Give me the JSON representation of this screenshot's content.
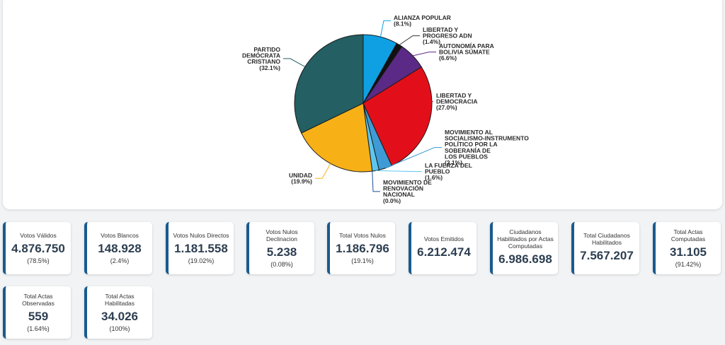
{
  "chart_data": {
    "type": "pie",
    "title": "",
    "slices": [
      {
        "lines": [
          "ALIANZA POPULAR",
          "(8.1%)"
        ],
        "value": 8.1,
        "color": "#0fa0e3"
      },
      {
        "lines": [
          "LIBERTAD Y",
          "PROGRESO ADN",
          "(1.4%)"
        ],
        "value": 1.4,
        "color": "#111111"
      },
      {
        "lines": [
          "AUTONOMÍA PARA",
          "BOLIVIA SÚMATE",
          "(6.6%)"
        ],
        "value": 6.6,
        "color": "#5b2a86"
      },
      {
        "lines": [
          "LIBERTAD Y",
          "DEMOCRACIA",
          "(27.0%)"
        ],
        "value": 27.0,
        "color": "#e20f1a"
      },
      {
        "lines": [
          "MOVIMIENTO AL",
          "SOCIALISMO-INSTRUMENTO",
          "POLÍTICO POR LA",
          "SOBERANÍA DE",
          "LOS PUEBLOS",
          "(3.1%)"
        ],
        "value": 3.1,
        "color": "#3e9bd6"
      },
      {
        "lines": [
          "LA FUERZA DEL",
          "PUEBLO",
          "(1.6%)"
        ],
        "value": 1.6,
        "color": "#5ec6ee"
      },
      {
        "lines": [
          "MOVIMIENTO DE",
          "RENOVACIÓN",
          "NACIONAL",
          "(0.0%)"
        ],
        "value": 0.0,
        "color": "#1f4e9a"
      },
      {
        "lines": [
          "UNIDAD",
          "(19.9%)"
        ],
        "value": 19.9,
        "color": "#f7b117"
      },
      {
        "lines": [
          "PARTIDO",
          "DEMÓCRATA",
          "CRISTIANO",
          "(32.1%)"
        ],
        "value": 32.1,
        "color": "#235f63"
      }
    ]
  },
  "stats": [
    {
      "label": "Votos Válidos",
      "value": "4.876.750",
      "pct": "(78.5%)"
    },
    {
      "label": "Votos Blancos",
      "value": "148.928",
      "pct": "(2.4%)"
    },
    {
      "label": "Votos Nulos Directos",
      "value": "1.181.558",
      "pct": "(19.02%)"
    },
    {
      "label": "Votos Nulos Declinacion",
      "value": "5.238",
      "pct": "(0.08%)"
    },
    {
      "label": "Total Votos Nulos",
      "value": "1.186.796",
      "pct": "(19.1%)"
    },
    {
      "label": "Votos Emitidos",
      "value": "6.212.474",
      "pct": ""
    },
    {
      "label": "Ciudadanos Habilitados por Actas Computadas",
      "value": "6.986.698",
      "pct": ""
    },
    {
      "label": "Total Ciudadanos Habilitados",
      "value": "7.567.207",
      "pct": ""
    },
    {
      "label": "Total Actas Computadas",
      "value": "31.105",
      "pct": "(91.42%)"
    },
    {
      "label": "Total Actas Observadas",
      "value": "559",
      "pct": "(1.64%)"
    },
    {
      "label": "Total Actas Habilitadas",
      "value": "34.026",
      "pct": "(100%)"
    }
  ]
}
